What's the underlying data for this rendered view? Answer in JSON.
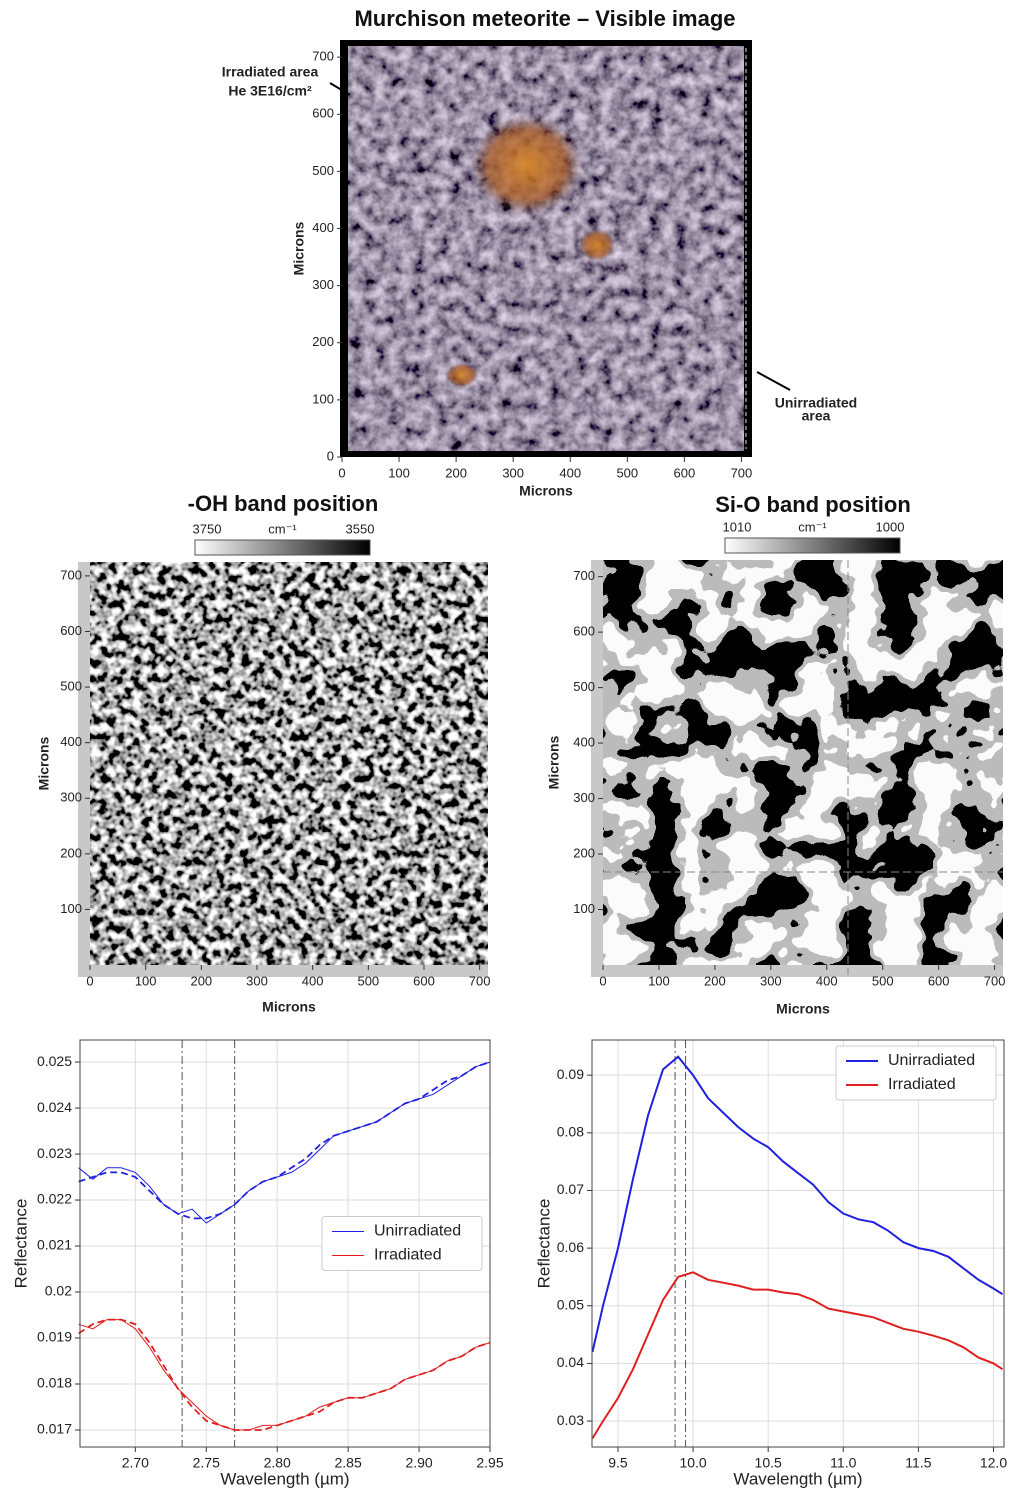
{
  "chart_data": [
    {
      "type": "image",
      "title": "Murchison meteorite – Visible image",
      "xlabel": "Microns",
      "ylabel": "Microns",
      "xlim": [
        0,
        715
      ],
      "xticks": [
        0,
        100,
        200,
        300,
        400,
        500,
        600,
        700
      ],
      "ylim": [
        0,
        730
      ],
      "yticks": [
        0,
        100,
        200,
        300,
        400,
        500,
        600,
        700
      ],
      "annotations": [
        "Irradiated area",
        "He 3E16/cm²",
        "Unirradiated",
        "area"
      ],
      "style": "visible"
    },
    {
      "type": "image",
      "title": "-OH band position",
      "xlabel": "Microns",
      "ylabel": "Microns",
      "xlim": [
        0,
        715
      ],
      "xticks": [
        0,
        100,
        200,
        300,
        400,
        500,
        600,
        700
      ],
      "ylim": [
        0,
        725
      ],
      "yticks": [
        100,
        200,
        300,
        400,
        500,
        600,
        700
      ],
      "colorbar": {
        "ticks": [
          3750,
          3550
        ],
        "unit": "cm⁻¹"
      },
      "style": "noise"
    },
    {
      "type": "image",
      "title": "Si-O  band position",
      "xlabel": "Microns",
      "ylabel": "Microns",
      "xlim": [
        0,
        715
      ],
      "xticks": [
        0,
        100,
        200,
        300,
        400,
        500,
        600,
        700
      ],
      "ylim": [
        0,
        730
      ],
      "yticks": [
        100,
        200,
        300,
        400,
        500,
        600,
        700
      ],
      "colorbar": {
        "ticks": [
          1010,
          1000
        ],
        "unit": "cm⁻¹"
      },
      "style": "patch"
    },
    {
      "type": "line",
      "xlabel": "Wavelength (µm)",
      "ylabel": "Reflectance",
      "xlim": [
        2.661,
        2.95
      ],
      "xticks": [
        {
          "value": 2.7,
          "label": "2.70"
        },
        2.75,
        {
          "value": 2.8,
          "label": "2.80"
        },
        2.85,
        {
          "value": 2.9,
          "label": "2.90"
        },
        2.95
      ],
      "ylim": [
        0.01663,
        0.02548
      ],
      "yticks": [
        0.017,
        0.018,
        0.019,
        0.02,
        0.021,
        0.022,
        0.023,
        0.024,
        0.025
      ],
      "yticklabels_note": null,
      "grid": true,
      "legend": "center right",
      "vlines": [
        2.733,
        2.77
      ],
      "linewidth": 1,
      "x": [
        2.66,
        2.67,
        2.68,
        2.69,
        2.7,
        2.71,
        2.72,
        2.73,
        2.74,
        2.75,
        2.76,
        2.77,
        2.78,
        2.79,
        2.8,
        2.81,
        2.82,
        2.83,
        2.84,
        2.85,
        2.86,
        2.87,
        2.88,
        2.89,
        2.9,
        2.91,
        2.92,
        2.93,
        2.94,
        2.95
      ],
      "series": [
        {
          "name": "Unirradiated",
          "color": "#2020e0",
          "dash": "solid",
          "values": [
            0.0227,
            0.02245,
            0.0227,
            0.0227,
            0.0226,
            0.0223,
            0.0219,
            0.0217,
            0.0218,
            0.0215,
            0.0217,
            0.0219,
            0.0222,
            0.0224,
            0.0225,
            0.0226,
            0.0228,
            0.0231,
            0.0234,
            0.0235,
            0.0236,
            0.0237,
            0.0239,
            0.0241,
            0.0242,
            0.0243,
            0.0245,
            0.0247,
            0.0249,
            0.025
          ]
        },
        {
          "name": "Irradiated",
          "color": "#e02020",
          "dash": "solid",
          "values": [
            0.0193,
            0.0192,
            0.0194,
            0.0194,
            0.0192,
            0.0188,
            0.0183,
            0.0179,
            0.0176,
            0.0173,
            0.0171,
            0.017,
            0.017,
            0.0171,
            0.0171,
            0.0172,
            0.0173,
            0.0175,
            0.0176,
            0.0177,
            0.0177,
            0.0178,
            0.0179,
            0.0181,
            0.0182,
            0.0183,
            0.0185,
            0.0186,
            0.0188,
            0.0189
          ]
        },
        {
          "name": null,
          "color": "#2020e0",
          "dash": "dashed",
          "values": [
            0.0224,
            0.0225,
            0.0226,
            0.0226,
            0.0225,
            0.0222,
            0.0219,
            0.0217,
            0.0216,
            0.0216,
            0.0217,
            0.0219,
            0.0222,
            0.0224,
            0.0225,
            0.0227,
            0.0229,
            0.0232,
            0.0234,
            0.0235,
            0.0236,
            0.0237,
            0.0239,
            0.0241,
            0.0242,
            0.0244,
            0.0246,
            0.0247,
            0.0249,
            0.025
          ]
        },
        {
          "name": null,
          "color": "#e02020",
          "dash": "dashed",
          "values": [
            0.0191,
            0.0193,
            0.0194,
            0.0194,
            0.0193,
            0.0189,
            0.0184,
            0.0179,
            0.0175,
            0.0172,
            0.0171,
            0.017,
            0.017,
            0.017,
            0.0171,
            0.0172,
            0.0173,
            0.0174,
            0.0176,
            0.0177,
            0.0177,
            0.0178,
            0.0179,
            0.0181,
            0.0182,
            0.0183,
            0.0185,
            0.0186,
            0.0188,
            0.0189
          ]
        }
      ]
    },
    {
      "type": "line",
      "xlabel": "Wavelength (µm)",
      "ylabel": "Reflectance",
      "xlim": [
        9.327,
        12.07
      ],
      "xticks": [
        9.5,
        {
          "value": 10,
          "label": "10.0"
        },
        10.5,
        {
          "value": 11,
          "label": "11.0"
        },
        11.5,
        {
          "value": 12,
          "label": "12.0"
        }
      ],
      "ylim": [
        0.0255,
        0.0961
      ],
      "yticks": [
        0.03,
        0.04,
        0.05,
        0.06,
        0.07,
        0.08,
        0.09
      ],
      "grid": true,
      "legend": "upper right",
      "vlines": [
        9.88,
        9.95
      ],
      "linewidth": 2,
      "x": [
        9.33,
        9.4,
        9.5,
        9.6,
        9.7,
        9.8,
        9.9,
        10.0,
        10.1,
        10.2,
        10.3,
        10.4,
        10.5,
        10.6,
        10.7,
        10.8,
        10.9,
        11.0,
        11.1,
        11.2,
        11.3,
        11.4,
        11.5,
        11.6,
        11.7,
        11.8,
        11.9,
        12.0,
        12.06
      ],
      "series": [
        {
          "name": "Unirradiated",
          "color": "#2020e0",
          "dash": "solid",
          "values": [
            0.042,
            0.05,
            0.06,
            0.072,
            0.083,
            0.091,
            0.0932,
            0.09,
            0.086,
            0.0835,
            0.081,
            0.079,
            0.0775,
            0.075,
            0.073,
            0.071,
            0.068,
            0.066,
            0.065,
            0.0645,
            0.063,
            0.061,
            0.06,
            0.0595,
            0.0585,
            0.0565,
            0.0545,
            0.053,
            0.052
          ]
        },
        {
          "name": "Irradiated",
          "color": "#e02020",
          "dash": "solid",
          "values": [
            0.027,
            0.03,
            0.034,
            0.039,
            0.045,
            0.051,
            0.055,
            0.0558,
            0.0545,
            0.054,
            0.0535,
            0.0528,
            0.0528,
            0.0523,
            0.052,
            0.051,
            0.0495,
            0.049,
            0.0485,
            0.048,
            0.047,
            0.046,
            0.0455,
            0.0448,
            0.044,
            0.0428,
            0.041,
            0.04,
            0.039
          ]
        }
      ]
    }
  ]
}
